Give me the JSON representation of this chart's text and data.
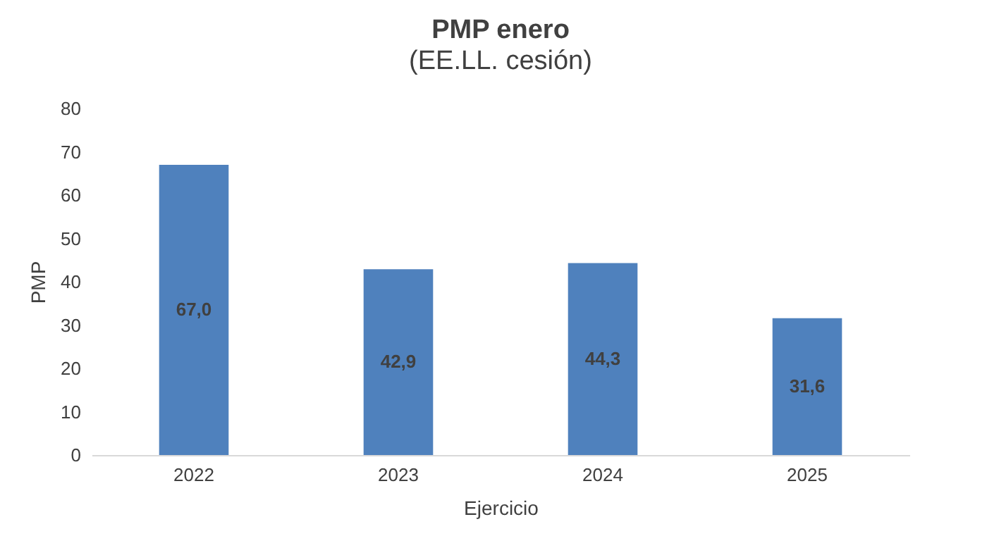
{
  "chart_data": {
    "type": "bar",
    "title": "PMP enero",
    "subtitle": "(EE.LL. cesión)",
    "xlabel": "Ejercicio",
    "ylabel": "PMP",
    "categories": [
      "2022",
      "2023",
      "2024",
      "2025"
    ],
    "values": [
      67.0,
      42.9,
      44.3,
      31.6
    ],
    "value_labels": [
      "67,0",
      "42,9",
      "44,3",
      "31,6"
    ],
    "color": "#4f81bd",
    "ylim": [
      0,
      80
    ],
    "yticks": [
      0,
      10,
      20,
      30,
      40,
      50,
      60,
      70,
      80
    ],
    "grid": false
  }
}
